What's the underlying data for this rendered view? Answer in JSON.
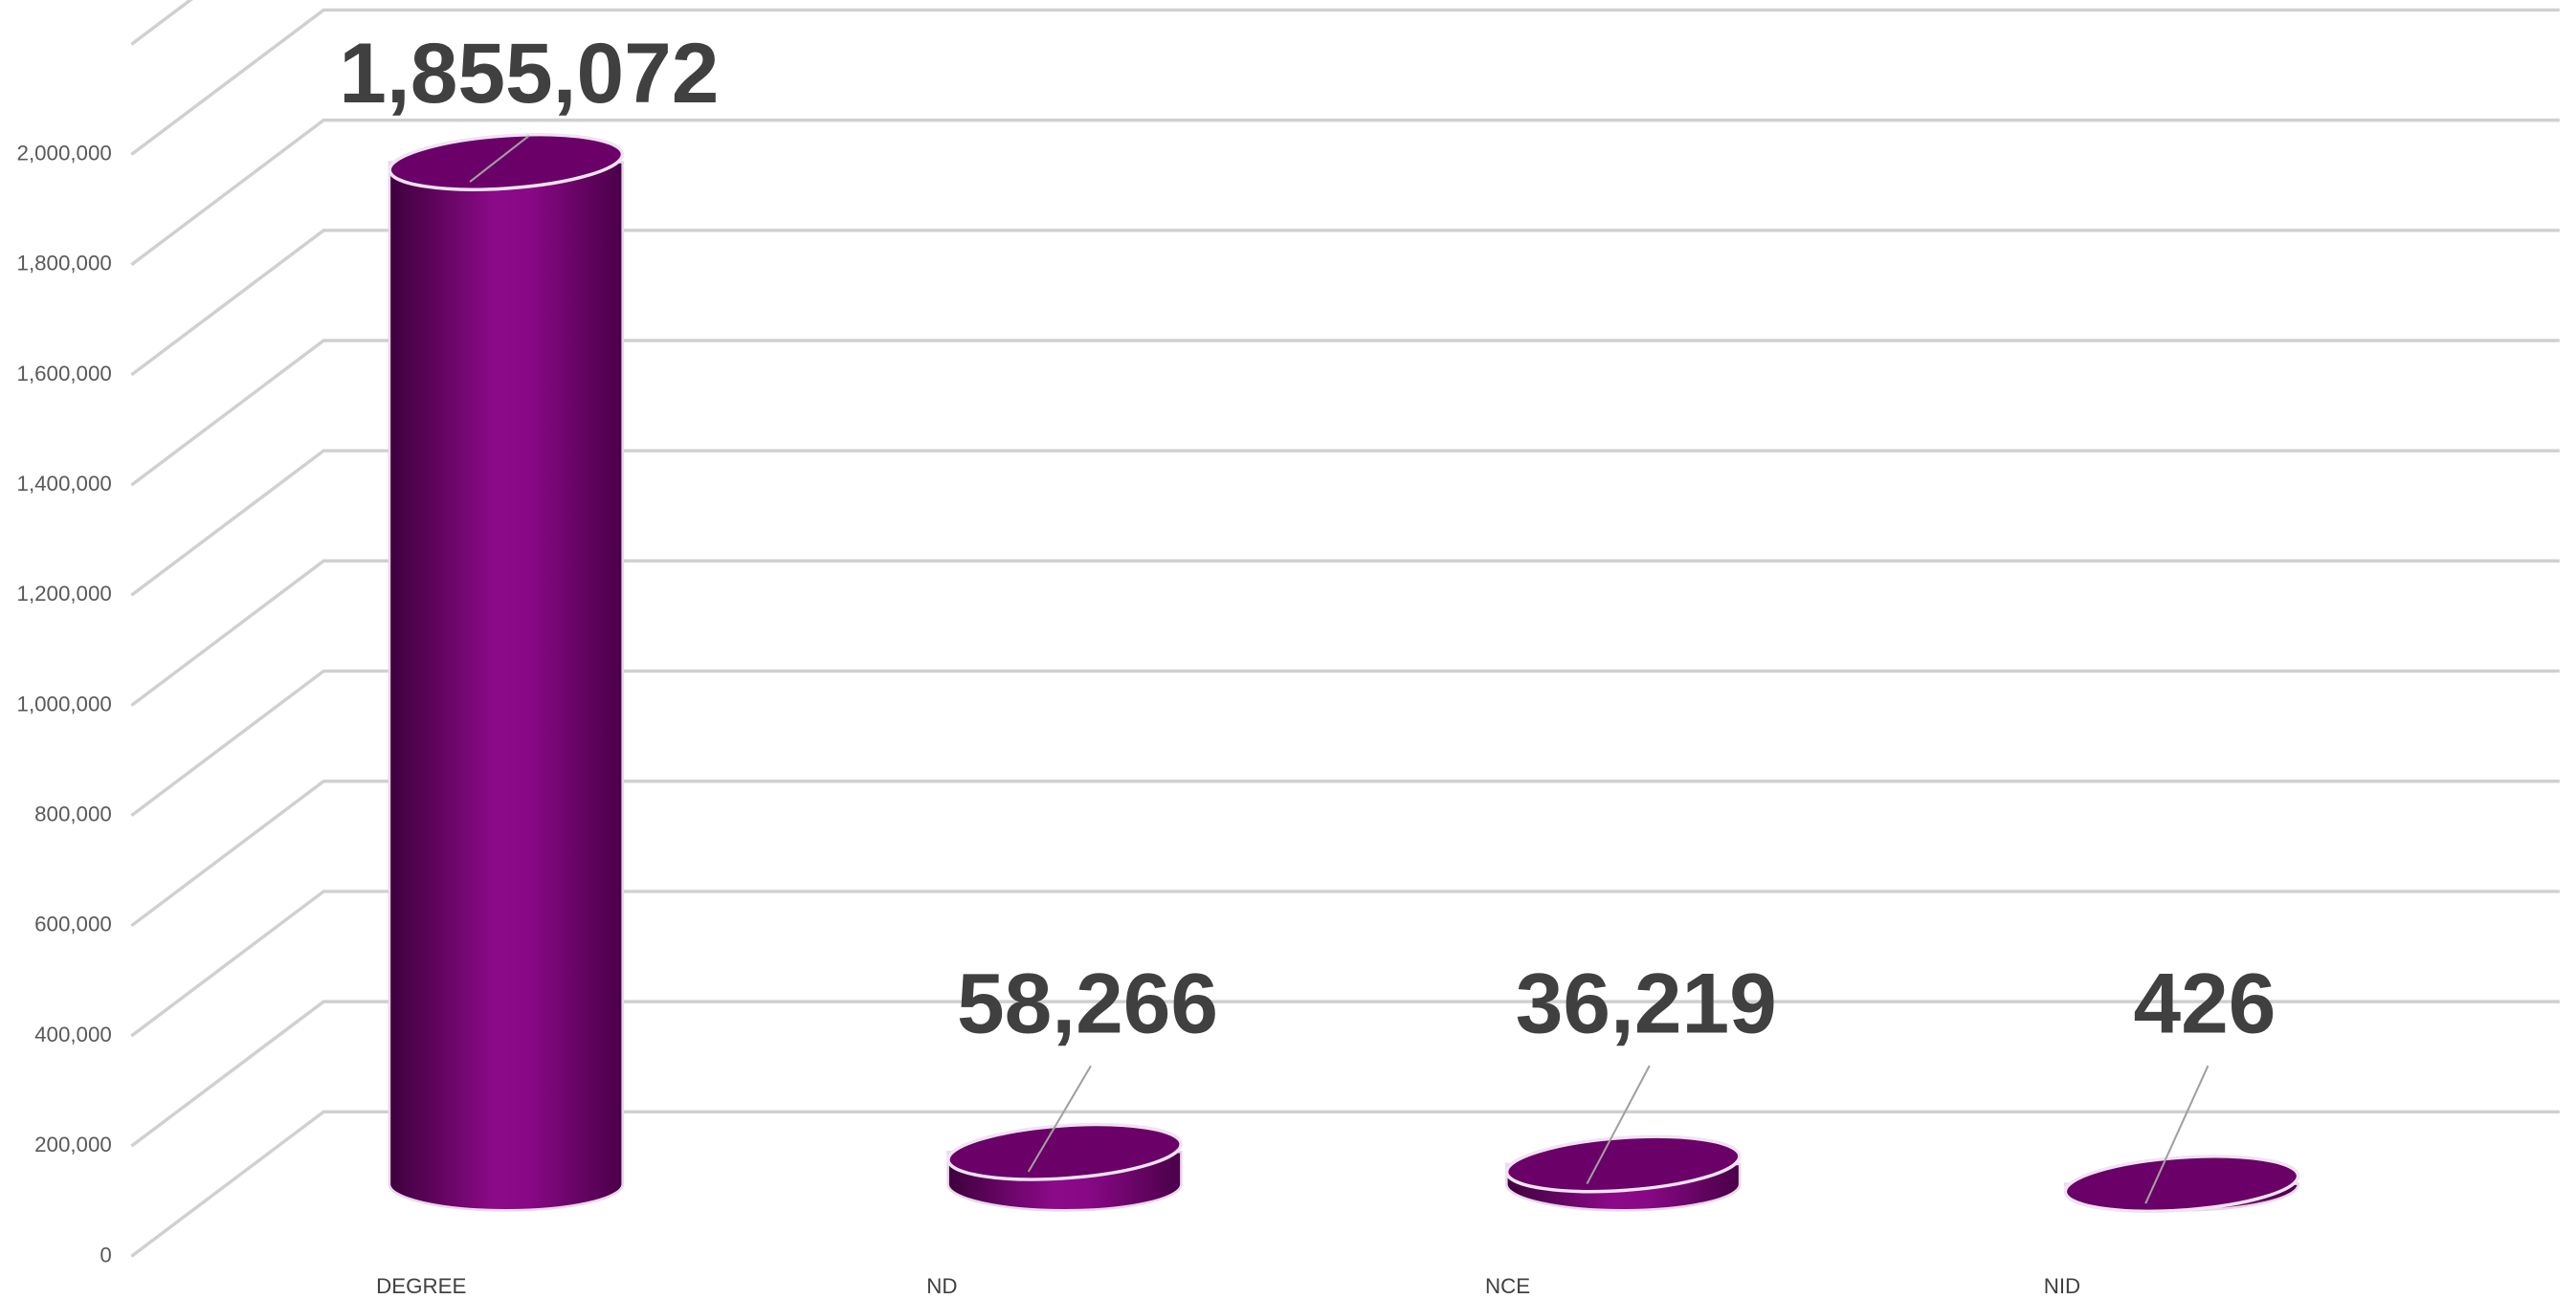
{
  "chart_data": {
    "type": "bar3d",
    "categories": [
      "DEGREE",
      "ND",
      "NCE",
      "NID"
    ],
    "values": [
      1855072,
      58266,
      36219,
      426
    ],
    "value_labels": [
      "1,855,072",
      "58,266",
      "36,219",
      "426"
    ],
    "color": "#8b0a88",
    "ylim": [
      0,
      2200000
    ],
    "yticks": [
      0,
      {
        "value": 200000,
        "label": "200,000"
      },
      {
        "value": 400000,
        "label": "400,000"
      },
      {
        "value": 600000,
        "label": "600,000"
      },
      {
        "value": 800000,
        "label": "800,000"
      },
      {
        "value": 1000000,
        "label": "1,000,000"
      },
      {
        "value": 1200000,
        "label": "1,200,000"
      },
      {
        "value": 1400000,
        "label": "1,400,000"
      },
      {
        "value": 1600000,
        "label": "1,600,000"
      },
      {
        "value": 1800000,
        "label": "1,800,000"
      },
      {
        "value": 2000000,
        "label": "2,000,000"
      }
    ],
    "grid": true
  }
}
